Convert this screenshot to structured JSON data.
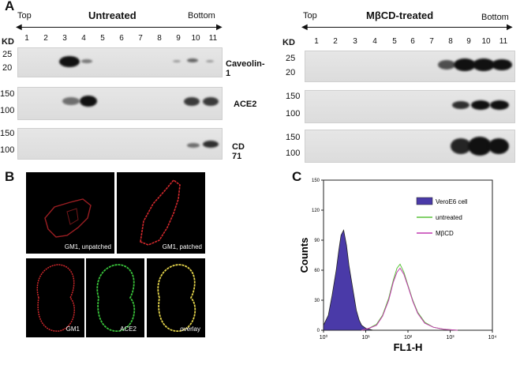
{
  "panel_a": {
    "letter": "A",
    "left": {
      "top_label": "Top",
      "condition": "Untreated",
      "bottom_label": "Bottom",
      "lanes": [
        "1",
        "2",
        "3",
        "4",
        "5",
        "6",
        "7",
        "8",
        "9",
        "10",
        "11"
      ],
      "kd_label": "KD",
      "blots": [
        {
          "protein": "Caveolin-1",
          "mw": [
            "25",
            "20"
          ]
        },
        {
          "protein": "ACE2",
          "mw": [
            "150",
            "100"
          ]
        },
        {
          "protein": "CD 71",
          "mw": [
            "150",
            "100"
          ]
        }
      ]
    },
    "right": {
      "top_label": "Top",
      "condition": "MβCD-treated",
      "bottom_label": "Bottom",
      "lanes": [
        "1",
        "2",
        "3",
        "4",
        "5",
        "6",
        "7",
        "8",
        "9",
        "10",
        "11"
      ],
      "kd_label": "KD",
      "blots": [
        {
          "mw": [
            "25",
            "20"
          ]
        },
        {
          "mw": [
            "150",
            "100"
          ]
        },
        {
          "mw": [
            "150",
            "100"
          ]
        }
      ]
    }
  },
  "panel_b": {
    "letter": "B",
    "images": [
      {
        "label": "GM1, unpatched"
      },
      {
        "label": "GM1, patched"
      },
      {
        "label": "GM1"
      },
      {
        "label": "ACE2"
      },
      {
        "label": "overlay"
      }
    ]
  },
  "panel_c": {
    "letter": "C",
    "chart_data": {
      "type": "area",
      "xlabel": "FL1-H",
      "ylabel": "Counts",
      "xscale": "log",
      "xlim": [
        1,
        10000
      ],
      "ylim": [
        0,
        150
      ],
      "x_ticks": [
        "10⁰",
        "10¹",
        "10²",
        "10³",
        "10⁴"
      ],
      "y_ticks": [
        "0",
        "30",
        "60",
        "90",
        "120",
        "150"
      ],
      "legend_position": "top-right",
      "series": [
        {
          "name": "VeroE6 cell",
          "color": "#4a3aa8",
          "filled": true,
          "x": [
            1,
            1.3,
            1.6,
            2,
            2.3,
            2.6,
            3,
            3.5,
            4,
            5,
            6,
            7,
            8,
            10,
            12,
            15
          ],
          "y": [
            5,
            15,
            35,
            60,
            80,
            95,
            100,
            85,
            65,
            40,
            20,
            10,
            5,
            2,
            1,
            0
          ]
        },
        {
          "name": "untreated",
          "color": "#5ac23a",
          "filled": false,
          "x": [
            8,
            12,
            18,
            25,
            35,
            45,
            55,
            65,
            80,
            100,
            130,
            170,
            250,
            400,
            700,
            1500
          ],
          "y": [
            0,
            2,
            6,
            15,
            32,
            50,
            62,
            66,
            58,
            45,
            30,
            18,
            8,
            3,
            1,
            0
          ]
        },
        {
          "name": "MβCD",
          "color": "#c23ab0",
          "filled": false,
          "x": [
            8,
            12,
            18,
            25,
            35,
            45,
            55,
            65,
            80,
            100,
            130,
            170,
            250,
            400,
            700,
            1500
          ],
          "y": [
            0,
            2,
            5,
            14,
            30,
            48,
            58,
            62,
            56,
            44,
            29,
            17,
            7,
            3,
            1,
            0
          ]
        }
      ]
    }
  }
}
